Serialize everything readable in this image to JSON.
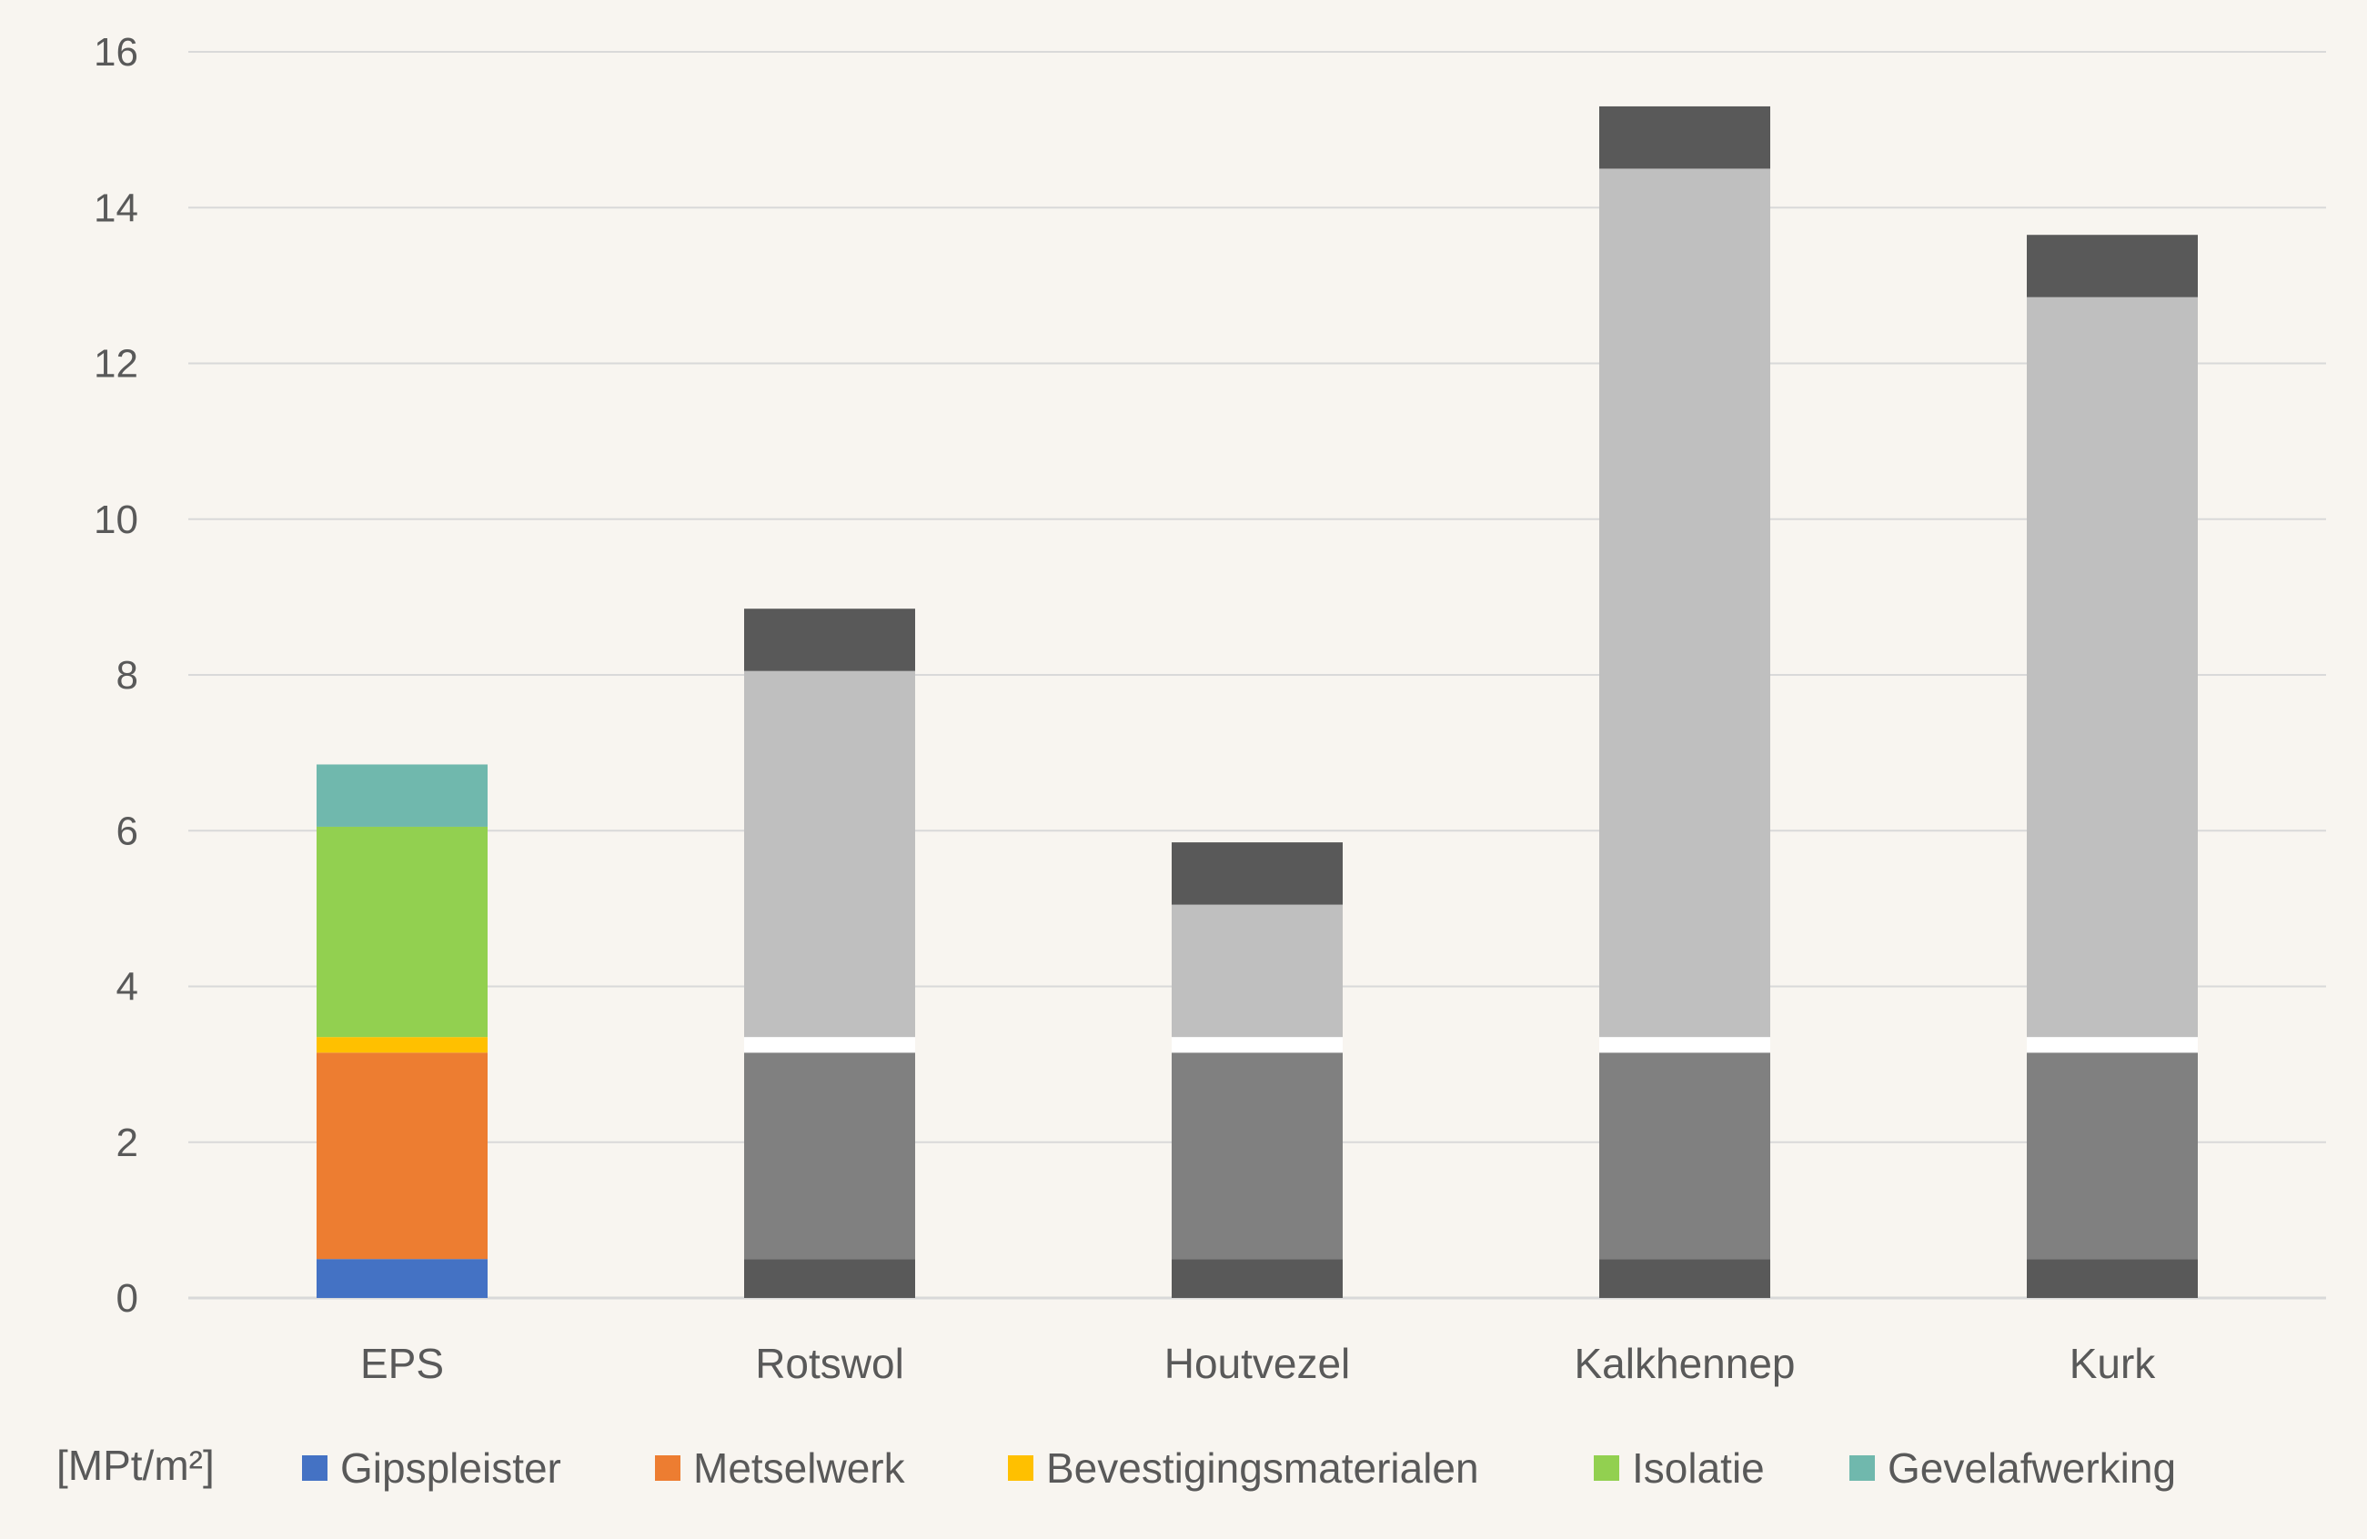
{
  "chart_data": {
    "type": "bar",
    "stacked": true,
    "categories": [
      "EPS",
      "Rotswol",
      "Houtvezel",
      "Kalkhennep",
      "Kurk"
    ],
    "unit_label": "[MPt/m²]",
    "ylim": [
      0,
      16
    ],
    "yticks": [
      0,
      2,
      4,
      6,
      8,
      10,
      12,
      14,
      16
    ],
    "grid": true,
    "legend_position": "bottom",
    "series": [
      {
        "name": "Gipspleister",
        "color": "#4472c4",
        "values": [
          0.5,
          0.5,
          0.5,
          0.5,
          0.5
        ]
      },
      {
        "name": "Metselwerk",
        "color": "#ed7d31",
        "values": [
          2.65,
          2.65,
          2.65,
          2.65,
          2.65
        ]
      },
      {
        "name": "Bevestigingsmaterialen",
        "color": "#ffc000",
        "values": [
          0.2,
          0.2,
          0.2,
          0.2,
          0.2
        ]
      },
      {
        "name": "Isolatie",
        "color": "#92d050",
        "values": [
          2.7,
          4.7,
          1.7,
          11.15,
          9.5
        ]
      },
      {
        "name": "Gevelafwerking",
        "color": "#70b8ad",
        "values": [
          0.8,
          0.8,
          0.8,
          0.8,
          0.8
        ]
      }
    ],
    "category_colors": {
      "EPS": null,
      "Rotswol": [
        "#595959",
        "#808080",
        "#ffffff",
        "#bfbfbf",
        "#595959"
      ],
      "Houtvezel": [
        "#595959",
        "#808080",
        "#ffffff",
        "#bfbfbf",
        "#595959"
      ],
      "Kalkhennep": [
        "#595959",
        "#808080",
        "#ffffff",
        "#bfbfbf",
        "#595959"
      ],
      "Kurk": [
        "#595959",
        "#808080",
        "#ffffff",
        "#bfbfbf",
        "#595959"
      ]
    }
  }
}
